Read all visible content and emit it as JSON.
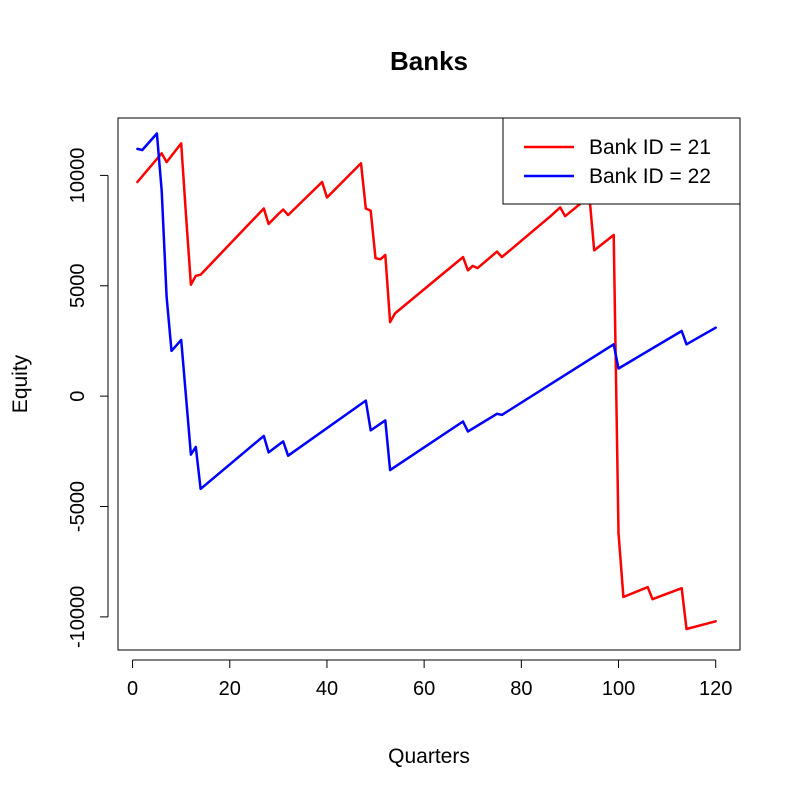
{
  "chart_data": {
    "type": "line",
    "title": "Banks",
    "xlabel": "Quarters",
    "ylabel": "Equity",
    "xlim": [
      -3,
      125
    ],
    "ylim": [
      -11500,
      12600
    ],
    "xticks": [
      0,
      20,
      40,
      60,
      80,
      100,
      120
    ],
    "yticks": [
      -10000,
      -5000,
      0,
      5000,
      10000
    ],
    "xtick_labels": [
      "0",
      "20",
      "40",
      "60",
      "80",
      "100",
      "120"
    ],
    "ytick_labels": [
      "-10000",
      "-5000",
      "0",
      "5000",
      "10000"
    ],
    "grid": false,
    "legend": {
      "position": "top-right"
    },
    "series": [
      {
        "name": "Bank ID = 21",
        "color": "#ff0000",
        "x": [
          1,
          6,
          7,
          10,
          11,
          12,
          13,
          14,
          27,
          28,
          30,
          31,
          32,
          39,
          40,
          47,
          48,
          49,
          50,
          51,
          52,
          53,
          54,
          68,
          69,
          70,
          71,
          75,
          76,
          86,
          88,
          89,
          94,
          95,
          99,
          100,
          101,
          106,
          107,
          113,
          114,
          120
        ],
        "y": [
          9700,
          11000,
          10600,
          11450,
          8200,
          5050,
          5450,
          5500,
          8500,
          7800,
          8250,
          8450,
          8200,
          9700,
          9000,
          10550,
          8500,
          8400,
          6250,
          6200,
          6400,
          3350,
          3750,
          6300,
          5700,
          5900,
          5800,
          6550,
          6300,
          8150,
          8550,
          8150,
          9050,
          6600,
          7300,
          -6200,
          -9100,
          -8650,
          -9200,
          -8700,
          -10550,
          -10200
        ]
      },
      {
        "name": "Bank ID = 22",
        "color": "#0000ff",
        "x": [
          1,
          2,
          5,
          6,
          7,
          8,
          10,
          12,
          13,
          14,
          27,
          28,
          31,
          32,
          48,
          49,
          52,
          53,
          68,
          69,
          75,
          76,
          99,
          100,
          113,
          114,
          120
        ],
        "y": [
          11200,
          11150,
          11900,
          9300,
          4500,
          2050,
          2550,
          -2650,
          -2300,
          -4200,
          -1800,
          -2550,
          -2050,
          -2700,
          -200,
          -1550,
          -1100,
          -3350,
          -1150,
          -1600,
          -800,
          -850,
          2350,
          1250,
          2950,
          2350,
          3100
        ]
      }
    ]
  }
}
